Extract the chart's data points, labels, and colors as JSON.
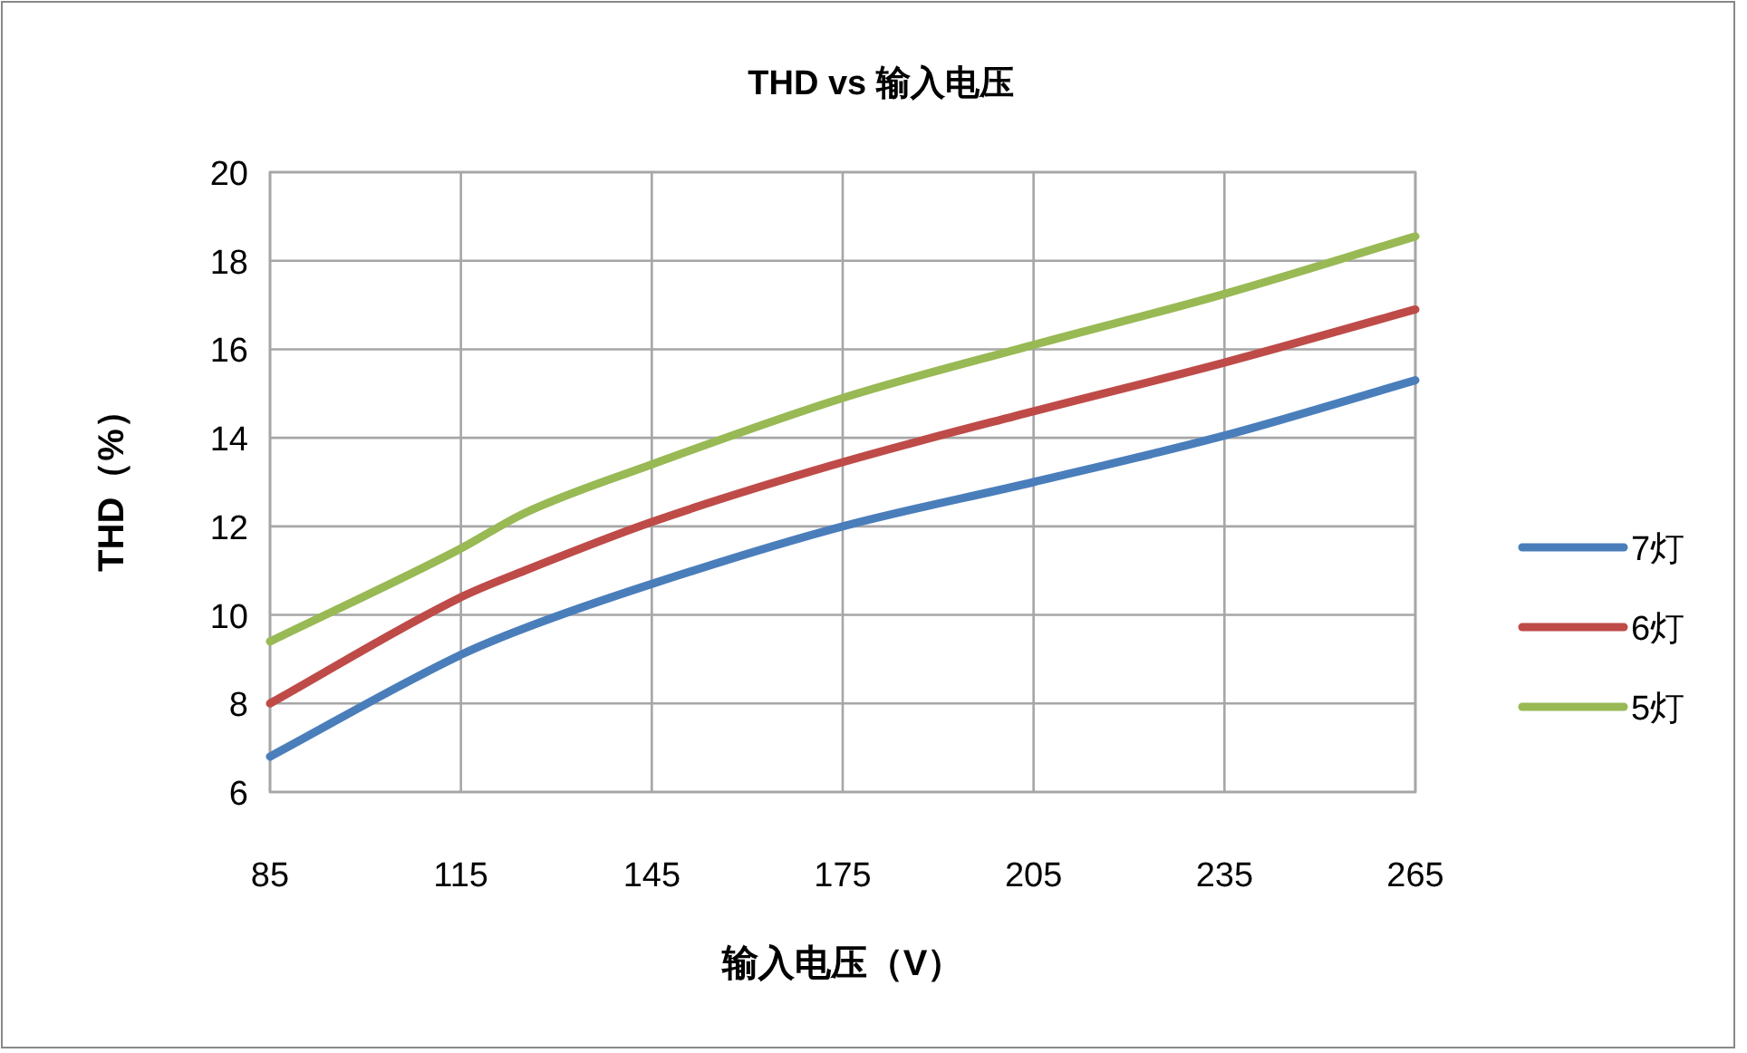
{
  "chart_data": {
    "type": "line",
    "title": "THD vs 输入电压",
    "xlabel": "输入电压（V）",
    "ylabel": "THD（%）",
    "x": [
      85,
      115,
      125,
      145,
      175,
      205,
      235,
      265
    ],
    "series": [
      {
        "name": "7灯",
        "color": "#4a7ebb",
        "values": [
          6.8,
          9.1,
          9.7,
          10.7,
          12.0,
          13.0,
          14.05,
          15.3
        ]
      },
      {
        "name": "6灯",
        "color": "#be4b48",
        "values": [
          8.0,
          10.4,
          11.0,
          12.1,
          13.45,
          14.6,
          15.7,
          16.9
        ]
      },
      {
        "name": "5灯",
        "color": "#98b954",
        "values": [
          9.4,
          11.5,
          12.3,
          13.4,
          14.9,
          16.1,
          17.25,
          18.55
        ]
      }
    ],
    "xlim": [
      85,
      265
    ],
    "xticks": [
      85,
      115,
      145,
      175,
      205,
      235,
      265
    ],
    "ylim": [
      6,
      20
    ],
    "yticks": [
      6,
      8,
      10,
      12,
      14,
      16,
      18,
      20
    ],
    "grid": true,
    "legend": "right",
    "marker": "none",
    "line_style": "solid"
  }
}
